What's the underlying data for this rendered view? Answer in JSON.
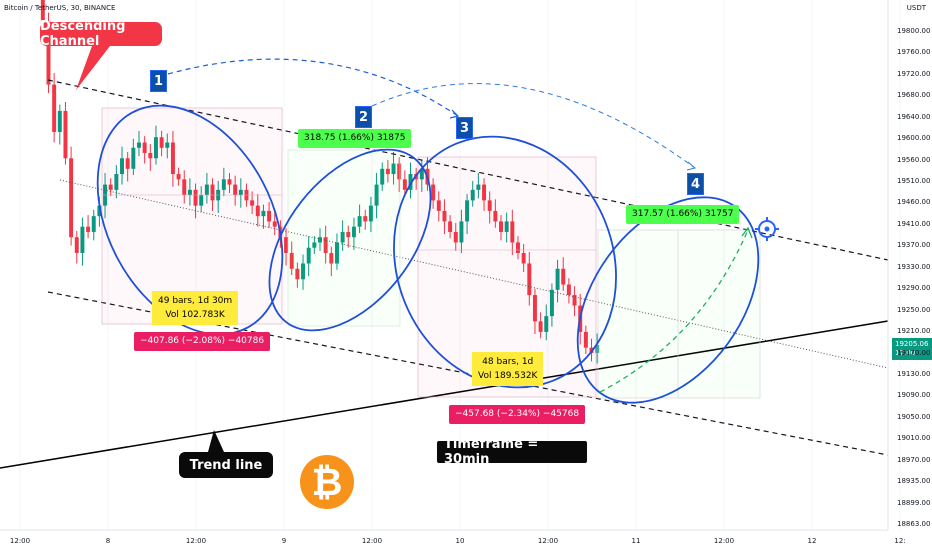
{
  "header": {
    "title": "Bitcoin / TetherUS, 30, BINANCE",
    "currency": "USDT"
  },
  "annotations": {
    "channel_label": "Descending Channel",
    "trend_label": "Trend line",
    "timeframe_label": "Timeframe = 30min",
    "wave_numbers": [
      "1",
      "2",
      "3",
      "4"
    ]
  },
  "measurements": {
    "m1_bars": "49 bars, 1d 30m",
    "m1_vol": "Vol 102.783K",
    "m1_change": "−407.86 (−2.08%) −40786",
    "m2_bars": "48 bars, 1d",
    "m2_vol": "Vol 189.532K",
    "m2_change": "−457.68 (−2.34%) −45768",
    "m3_change": "318.75 (1.66%) 31875",
    "m4_change": "317.57 (1.66%) 31757"
  },
  "price_tag": {
    "price": "19205.06",
    "countdown": "17:00"
  },
  "colors": {
    "up": "#089981",
    "down": "#f23645",
    "ellipse": "#1e4fd8",
    "projection": "#20b060"
  },
  "icons": {
    "logo": "bitcoin-icon",
    "target": "crosshair-target-icon"
  },
  "chart_data": {
    "type": "candlestick",
    "title": "Bitcoin / TetherUS, 30, BINANCE",
    "y_axis": {
      "unit": "USDT",
      "ticks": [
        "19800.00",
        "19760.00",
        "19720.00",
        "19680.00",
        "19640.00",
        "19600.00",
        "19560.00",
        "19510.00",
        "19460.00",
        "19410.00",
        "19370.00",
        "19330.00",
        "19290.00",
        "19250.00",
        "19210.00",
        "19170.00",
        "19130.00",
        "19090.00",
        "19050.00",
        "19010.00",
        "18970.00",
        "18935.00",
        "18899.00",
        "18863.00"
      ]
    },
    "x_axis": {
      "ticks": [
        "12:00",
        "8",
        "12:00",
        "9",
        "12:00",
        "10",
        "12:00",
        "11",
        "12:00",
        "12",
        "12:"
      ]
    },
    "candles_close": [
      19820,
      19700,
      19610,
      19650,
      19560,
      19410,
      19380,
      19430,
      19420,
      19450,
      19470,
      19510,
      19500,
      19530,
      19560,
      19540,
      19580,
      19590,
      19570,
      19560,
      19600,
      19580,
      19590,
      19530,
      19520,
      19490,
      19500,
      19470,
      19490,
      19510,
      19480,
      19500,
      19520,
      19510,
      19490,
      19500,
      19480,
      19470,
      19450,
      19460,
      19440,
      19430,
      19410,
      19380,
      19350,
      19330,
      19360,
      19390,
      19400,
      19410,
      19380,
      19360,
      19400,
      19420,
      19410,
      19430,
      19450,
      19440,
      19470,
      19510,
      19540,
      19530,
      19550,
      19520,
      19500,
      19530,
      19520,
      19540,
      19510,
      19480,
      19460,
      19440,
      19420,
      19400,
      19440,
      19480,
      19500,
      19510,
      19480,
      19460,
      19440,
      19420,
      19440,
      19400,
      19380,
      19360,
      19300,
      19250,
      19230,
      19260,
      19310,
      19350,
      19320,
      19300,
      19280,
      19230,
      19200,
      19190,
      19205
    ]
  }
}
